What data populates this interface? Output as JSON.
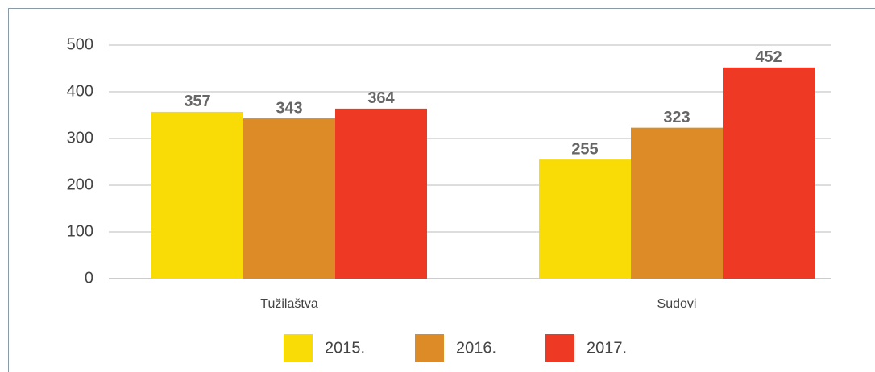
{
  "chart_data": {
    "type": "bar",
    "categories": [
      "Tužilaštva",
      "Sudovi"
    ],
    "series": [
      {
        "name": "2015.",
        "color": "#f9dc06",
        "values": [
          357,
          255
        ]
      },
      {
        "name": "2016.",
        "color": "#dd8b26",
        "values": [
          343,
          323
        ]
      },
      {
        "name": "2017.",
        "color": "#ee3a24",
        "values": [
          364,
          452
        ]
      }
    ],
    "ylim": [
      0,
      500
    ],
    "yticks": [
      0,
      100,
      200,
      300,
      400,
      500
    ],
    "grid": true,
    "legend": "bottom"
  }
}
